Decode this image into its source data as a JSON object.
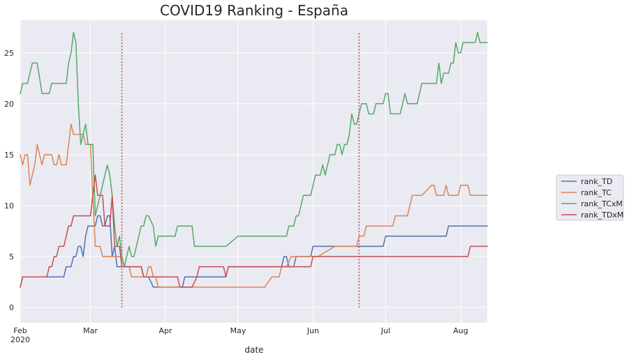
{
  "chart_data": {
    "type": "line",
    "title": "COVID19  Ranking - España",
    "xlabel": "date",
    "ylabel": "",
    "xlim_days": [
      0,
      193
    ],
    "ylim": [
      -1.5,
      28.2
    ],
    "yticks": [
      0,
      5,
      10,
      15,
      20,
      25
    ],
    "yticklabels": [
      "0",
      "5",
      "10",
      "15",
      "20",
      "25"
    ],
    "xticks": [
      {
        "day": 0,
        "label": "Feb",
        "sub": "2020"
      },
      {
        "day": 29,
        "label": "Mar",
        "sub": ""
      },
      {
        "day": 60,
        "label": "Apr",
        "sub": ""
      },
      {
        "day": 90,
        "label": "May",
        "sub": ""
      },
      {
        "day": 121,
        "label": "Jun",
        "sub": ""
      },
      {
        "day": 151,
        "label": "Jul",
        "sub": ""
      },
      {
        "day": 182,
        "label": "Aug",
        "sub": ""
      }
    ],
    "vlines": [
      {
        "day": 42,
        "ymin": 0,
        "ymax": 27,
        "color": "#c44e52"
      },
      {
        "day": 140,
        "ymin": 0,
        "ymax": 27,
        "color": "#c44e52"
      }
    ],
    "legend_position": "right",
    "series": [
      {
        "name": "rank_TD",
        "color": "#4c72b0",
        "x": [
          0,
          1,
          18,
          19,
          21,
          22,
          23,
          24,
          25,
          26,
          27,
          28,
          29,
          31,
          32,
          33,
          34,
          35,
          36,
          37,
          38,
          39,
          40,
          41,
          42,
          50,
          51,
          53,
          55,
          64,
          67,
          68,
          70,
          71,
          73,
          74,
          85,
          86,
          90,
          100,
          101,
          103,
          106,
          108,
          109,
          110,
          111,
          112,
          113,
          114,
          115,
          116,
          117,
          119,
          120,
          121,
          134,
          135,
          136,
          150,
          151,
          159,
          160,
          163,
          164,
          165,
          176,
          177,
          193
        ],
        "y": [
          2,
          3,
          3,
          4,
          4,
          5,
          5,
          6,
          6,
          5,
          7,
          8,
          8,
          8,
          9,
          9,
          8,
          8,
          9,
          9,
          5,
          6,
          4,
          4,
          4,
          4,
          3,
          3,
          2,
          2,
          2,
          3,
          3,
          3,
          3,
          3,
          3,
          4,
          4,
          4,
          4,
          4,
          4,
          4,
          5,
          5,
          4,
          4,
          4,
          5,
          5,
          5,
          5,
          5,
          5,
          6,
          6,
          6,
          6,
          6,
          7,
          7,
          7,
          7,
          7,
          7,
          7,
          8,
          8
        ]
      },
      {
        "name": "rank_TC",
        "color": "#dd8452",
        "x": [
          0,
          1,
          2,
          3,
          4,
          5,
          6,
          7,
          8,
          9,
          10,
          11,
          12,
          13,
          14,
          15,
          16,
          17,
          18,
          19,
          20,
          21,
          22,
          23,
          24,
          25,
          26,
          27,
          28,
          29,
          30,
          31,
          32,
          33,
          34,
          35,
          36,
          37,
          38,
          39,
          40,
          41,
          42,
          43,
          44,
          45,
          46,
          47,
          48,
          49,
          50,
          51,
          52,
          53,
          54,
          55,
          56,
          57,
          58,
          59,
          60,
          100,
          101,
          104,
          105,
          106,
          107,
          108,
          110,
          112,
          120,
          121,
          123,
          130,
          138,
          139,
          140,
          141,
          142,
          143,
          145,
          150,
          154,
          155,
          156,
          157,
          160,
          161,
          162,
          163,
          164,
          165,
          166,
          170,
          171,
          172,
          175,
          176,
          177,
          180,
          181,
          182,
          183,
          184,
          185,
          186,
          187,
          188,
          189,
          190,
          193
        ],
        "y": [
          15,
          14,
          15,
          15,
          12,
          13,
          14,
          16,
          15,
          14,
          15,
          15,
          15,
          15,
          14,
          14,
          15,
          14,
          14,
          14,
          16,
          18,
          17,
          17,
          17,
          17,
          17,
          16,
          16,
          16,
          11,
          6,
          6,
          6,
          5,
          5,
          5,
          5,
          5,
          5,
          5,
          5,
          5,
          4,
          4,
          4,
          3,
          3,
          3,
          3,
          3,
          3,
          3,
          4,
          4,
          3,
          3,
          2,
          2,
          2,
          2,
          2,
          2,
          3,
          3,
          3,
          3,
          4,
          4,
          5,
          5,
          5,
          5,
          6,
          6,
          6,
          7,
          7,
          7,
          8,
          8,
          8,
          8,
          9,
          9,
          9,
          9,
          10,
          11,
          11,
          11,
          11,
          11,
          12,
          12,
          11,
          11,
          12,
          11,
          11,
          11,
          12,
          12,
          12,
          12,
          11,
          11,
          11,
          11,
          11,
          11
        ]
      },
      {
        "name": "rank_TCxM",
        "color": "#55a868",
        "x": [
          0,
          1,
          2,
          3,
          5,
          6,
          7,
          9,
          10,
          11,
          12,
          13,
          14,
          15,
          16,
          17,
          18,
          19,
          20,
          21,
          22,
          23,
          24,
          25,
          26,
          27,
          28,
          29,
          30,
          31,
          32,
          33,
          34,
          35,
          36,
          37,
          38,
          39,
          40,
          41,
          42,
          43,
          44,
          45,
          46,
          47,
          48,
          50,
          51,
          52,
          53,
          55,
          56,
          57,
          58,
          59,
          60,
          61,
          62,
          63,
          64,
          65,
          70,
          71,
          72,
          73,
          74,
          75,
          76,
          77,
          78,
          79,
          80,
          81,
          82,
          83,
          84,
          85,
          90,
          91,
          92,
          95,
          100,
          105,
          110,
          111,
          112,
          113,
          114,
          115,
          116,
          117,
          118,
          119,
          120,
          121,
          122,
          123,
          124,
          125,
          126,
          127,
          128,
          129,
          130,
          131,
          132,
          133,
          134,
          135,
          136,
          137,
          138,
          139,
          140,
          141,
          142,
          143,
          144,
          145,
          146,
          147,
          148,
          149,
          150,
          151,
          152,
          153,
          154,
          155,
          156,
          157,
          158,
          159,
          160,
          161,
          162,
          163,
          164,
          165,
          166,
          167,
          168,
          169,
          170,
          171,
          172,
          173,
          174,
          175,
          176,
          177,
          178,
          179,
          180,
          181,
          182,
          183,
          184,
          185,
          186,
          187,
          188,
          189,
          190,
          191,
          192,
          193
        ],
        "y": [
          21,
          22,
          22,
          22,
          24,
          24,
          24,
          21,
          21,
          21,
          21,
          22,
          22,
          22,
          22,
          22,
          22,
          22,
          24,
          25,
          27,
          26,
          20,
          16,
          17,
          18,
          16,
          16,
          16,
          9,
          10,
          11,
          12,
          13,
          14,
          13,
          11,
          8,
          6,
          7,
          5,
          4,
          5,
          6,
          5,
          5,
          6,
          8,
          8,
          9,
          9,
          8,
          6,
          7,
          7,
          7,
          7,
          7,
          7,
          7,
          7,
          8,
          8,
          8,
          6,
          6,
          6,
          6,
          6,
          6,
          6,
          6,
          6,
          6,
          6,
          6,
          6,
          6,
          7,
          7,
          7,
          7,
          7,
          7,
          7,
          8,
          8,
          8,
          9,
          9,
          10,
          11,
          11,
          11,
          11,
          12,
          13,
          13,
          13,
          14,
          13,
          14,
          15,
          15,
          15,
          16,
          16,
          15,
          16,
          16,
          17,
          19,
          18,
          18,
          19,
          20,
          20,
          20,
          19,
          19,
          19,
          20,
          20,
          20,
          20,
          21,
          21,
          19,
          19,
          19,
          19,
          19,
          20,
          21,
          20,
          20,
          20,
          20,
          20,
          21,
          22,
          22,
          22,
          22,
          22,
          22,
          22,
          24,
          22,
          23,
          23,
          23,
          24,
          24,
          26,
          25,
          25,
          26,
          26,
          26,
          26,
          26,
          26,
          27,
          26,
          26,
          26,
          26
        ]
      },
      {
        "name": "rank_TDxM",
        "color": "#c44e52",
        "x": [
          0,
          1,
          10,
          11,
          12,
          13,
          14,
          15,
          16,
          17,
          18,
          19,
          20,
          21,
          22,
          23,
          24,
          25,
          26,
          27,
          28,
          29,
          30,
          31,
          32,
          33,
          34,
          35,
          36,
          37,
          38,
          39,
          40,
          41,
          42,
          45,
          46,
          50,
          51,
          53,
          55,
          60,
          65,
          66,
          70,
          71,
          73,
          74,
          80,
          84,
          85,
          86,
          90,
          100,
          105,
          110,
          112,
          120,
          121,
          122,
          130,
          140,
          150,
          160,
          165,
          170,
          175,
          180,
          185,
          186,
          187,
          193
        ],
        "y": [
          2,
          3,
          3,
          3,
          4,
          4,
          5,
          5,
          6,
          6,
          6,
          7,
          8,
          8,
          9,
          9,
          9,
          9,
          9,
          9,
          9,
          9,
          11,
          13,
          11,
          11,
          11,
          8,
          8,
          8,
          11,
          6,
          6,
          6,
          4,
          4,
          4,
          4,
          3,
          3,
          3,
          3,
          3,
          2,
          2,
          2,
          3,
          4,
          4,
          4,
          3,
          4,
          4,
          4,
          4,
          4,
          4,
          4,
          5,
          5,
          5,
          5,
          5,
          5,
          5,
          5,
          5,
          5,
          5,
          6,
          6,
          6
        ]
      }
    ]
  }
}
